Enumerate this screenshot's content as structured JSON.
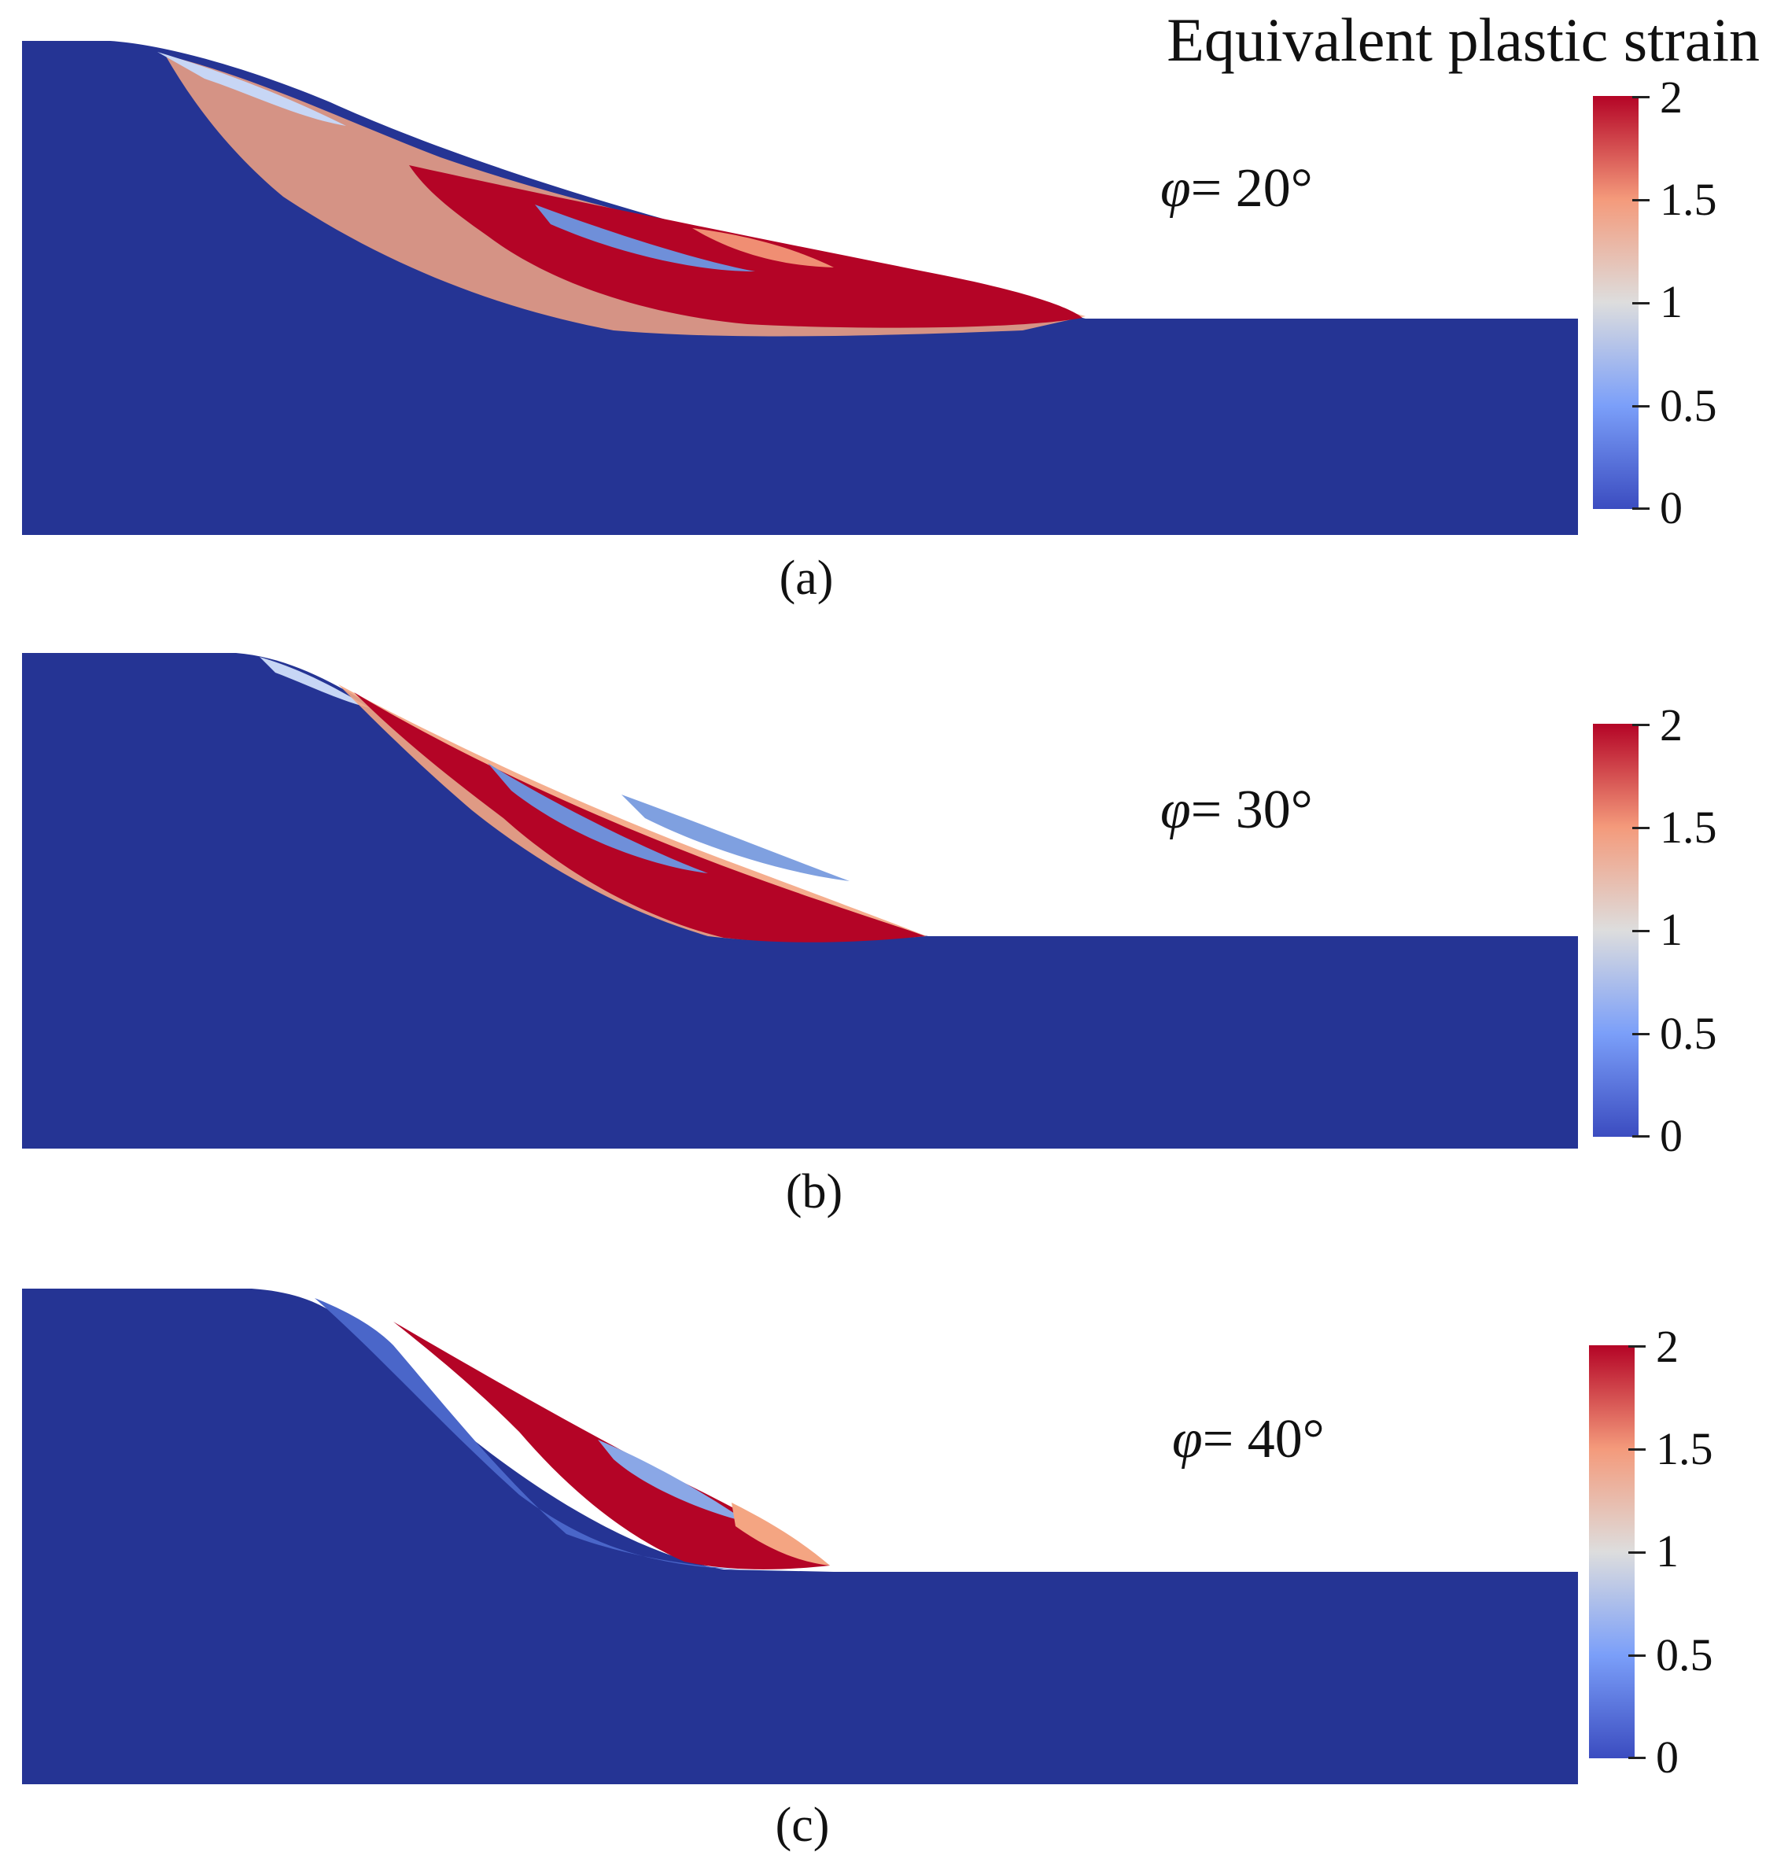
{
  "figure": {
    "title": "Equivalent plastic strain",
    "colorbar": {
      "colors": {
        "low": "#3b4cc0",
        "mid": "#dddddd",
        "high": "#b40426",
        "background": "#253494"
      },
      "ticks": [
        "2",
        "1.5",
        "1",
        "0.5",
        "0"
      ]
    },
    "panels": [
      {
        "id": "a",
        "caption": "(a)",
        "phi_symbol": "φ",
        "phi_value": "= 20°"
      },
      {
        "id": "b",
        "caption": "(b)",
        "phi_symbol": "φ",
        "phi_value": "= 30°"
      },
      {
        "id": "c",
        "caption": "(c)",
        "phi_symbol": "φ",
        "phi_value": "= 40°"
      }
    ]
  }
}
